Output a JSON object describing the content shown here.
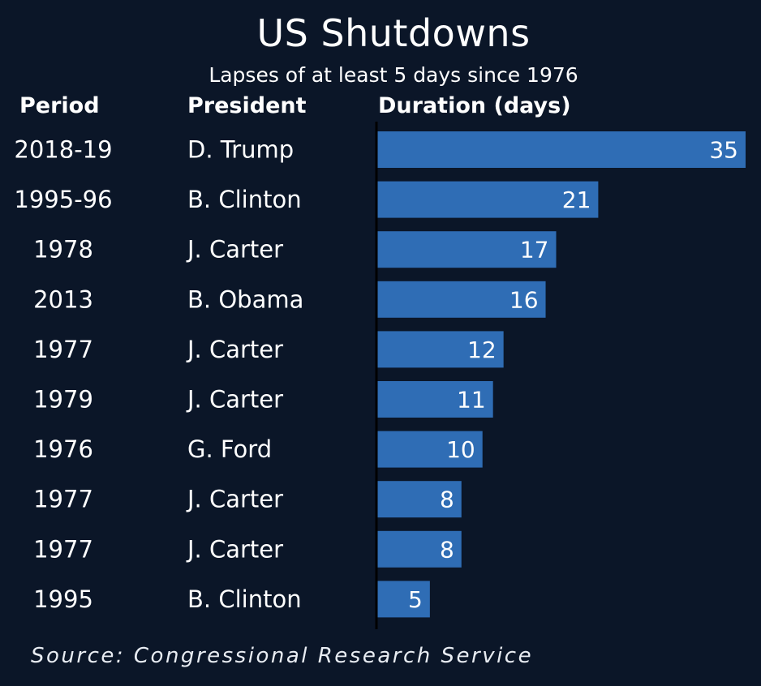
{
  "title": "US Shutdowns",
  "subtitle": "Lapses of at least 5 days since 1976",
  "headers": {
    "period": "Period",
    "president": "President",
    "duration": "Duration (days)"
  },
  "source": "Source: Congressional Research Service",
  "colors": {
    "background": "#0b1628",
    "bar": "#2f6db5",
    "text": "#ffffff"
  },
  "chart_data": {
    "type": "bar",
    "orientation": "horizontal",
    "title": "US Shutdowns",
    "subtitle": "Lapses of at least 5 days since 1976",
    "columns": [
      "Period",
      "President",
      "Duration (days)"
    ],
    "rows": [
      {
        "period": "2018-19",
        "president": "D. Trump",
        "value": 35
      },
      {
        "period": "1995-96",
        "president": "B. Clinton",
        "value": 21
      },
      {
        "period": "1978",
        "president": "J. Carter",
        "value": 17
      },
      {
        "period": "2013",
        "president": "B. Obama",
        "value": 16
      },
      {
        "period": "1977",
        "president": "J. Carter",
        "value": 12
      },
      {
        "period": "1979",
        "president": "J. Carter",
        "value": 11
      },
      {
        "period": "1976",
        "president": "G. Ford",
        "value": 10
      },
      {
        "period": "1977",
        "president": "J. Carter",
        "value": 8
      },
      {
        "period": "1977",
        "president": "J. Carter",
        "value": 8
      },
      {
        "period": "1995",
        "president": "B. Clinton",
        "value": 5
      }
    ],
    "xlim": [
      0,
      35
    ],
    "grid": false,
    "data_labels": "inside-end"
  }
}
